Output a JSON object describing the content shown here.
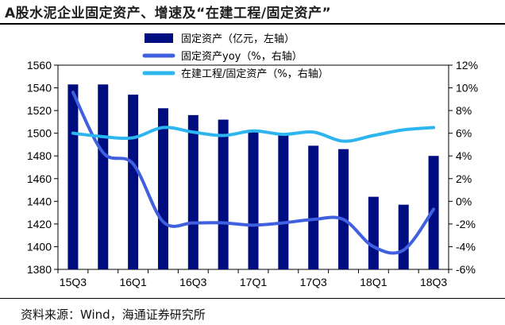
{
  "title": "A股水泥企业固定资产、增速及“在建工程/固定资产”",
  "source": "资料来源：Wind，海通证券研究所",
  "chart_data": {
    "type": "bar",
    "x_categories": [
      "15Q3",
      "15Q4",
      "16Q1",
      "16Q2",
      "16Q3",
      "16Q4",
      "17Q1",
      "17Q2",
      "17Q3",
      "17Q4",
      "18Q1",
      "18Q2",
      "18Q3"
    ],
    "x_tick_labels": [
      "15Q3",
      "16Q1",
      "16Q3",
      "17Q1",
      "17Q3",
      "18Q1",
      "18Q3"
    ],
    "left_axis": {
      "min": 1380,
      "max": 1560,
      "step": 20,
      "tick_labels": [
        "1380",
        "1400",
        "1420",
        "1440",
        "1460",
        "1480",
        "1500",
        "1520",
        "1540",
        "1560"
      ]
    },
    "right_axis": {
      "min": -6,
      "max": 12,
      "step": 2,
      "tick_labels": [
        "-6%",
        "-4%",
        "-2%",
        "0%",
        "2%",
        "4%",
        "6%",
        "8%",
        "10%",
        "12%"
      ]
    },
    "series": [
      {
        "name": "固定资产（亿元，左轴）",
        "type": "bar",
        "axis": "left",
        "color": "#000d80",
        "values": [
          1543,
          1543,
          1534,
          1522,
          1516,
          1512,
          1503,
          1500,
          1489,
          1486,
          1444,
          1437,
          1480
        ]
      },
      {
        "name": "固定资产yoy（%，右轴）",
        "type": "line",
        "axis": "right",
        "color": "#4060e0",
        "values": [
          9.6,
          4.3,
          3.3,
          -1.8,
          -1.9,
          -1.9,
          -2.1,
          -1.9,
          -1.6,
          -1.6,
          -4.0,
          -4.3,
          -0.7
        ]
      },
      {
        "name": "在建工程/固定资产（%，右轴）",
        "type": "line",
        "axis": "right",
        "color": "#2cb5ee",
        "values": [
          6.0,
          5.7,
          5.6,
          6.5,
          6.1,
          5.8,
          6.2,
          5.9,
          6.1,
          5.3,
          5.8,
          6.3,
          6.5
        ]
      }
    ]
  }
}
